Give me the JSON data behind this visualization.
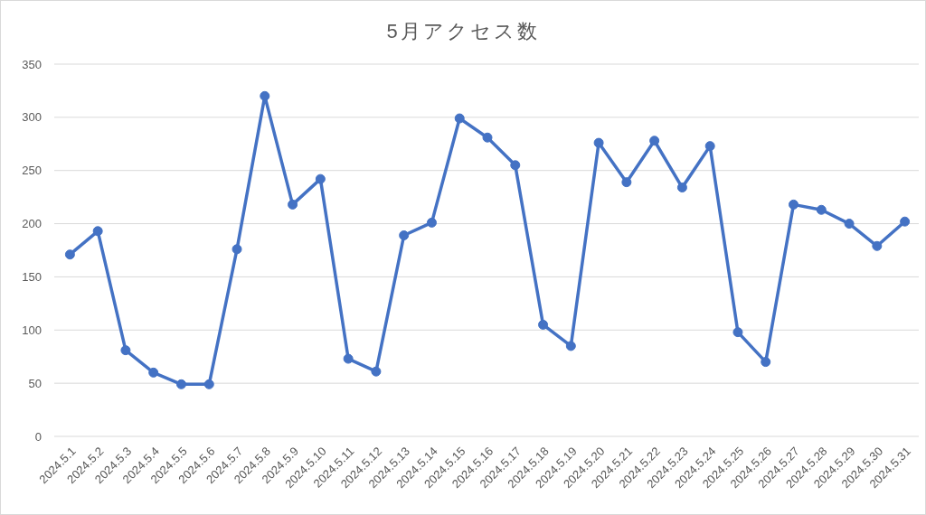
{
  "chart_data": {
    "type": "line",
    "title": "5月アクセス数",
    "categories": [
      "2024.5.1",
      "2024.5.2",
      "2024.5.3",
      "2024.5.4",
      "2024.5.5",
      "2024.5.6",
      "2024.5.7",
      "2024.5.8",
      "2024.5.9",
      "2024.5.10",
      "2024.5.11",
      "2024.5.12",
      "2024.5.13",
      "2024.5.14",
      "2024.5.15",
      "2024.5.16",
      "2024.5.17",
      "2024.5.18",
      "2024.5.19",
      "2024.5.20",
      "2024.5.21",
      "2024.5.22",
      "2024.5.23",
      "2024.5.24",
      "2024.5.25",
      "2024.5.26",
      "2024.5.27",
      "2024.5.28",
      "2024.5.29",
      "2024.5.30",
      "2024.5.31"
    ],
    "series": [
      {
        "color": "#4472c4",
        "values": [
          171,
          193,
          81,
          60,
          49,
          49,
          176,
          320,
          218,
          242,
          73,
          61,
          189,
          201,
          299,
          281,
          255,
          105,
          85,
          276,
          239,
          278,
          234,
          273,
          98,
          70,
          218,
          213,
          200,
          179,
          202
        ]
      }
    ],
    "ylim": [
      0,
      350
    ],
    "yticks": [
      0,
      50,
      100,
      150,
      200,
      250,
      300,
      350
    ],
    "grid": "y",
    "marker": "circle",
    "line_style": "solid"
  }
}
